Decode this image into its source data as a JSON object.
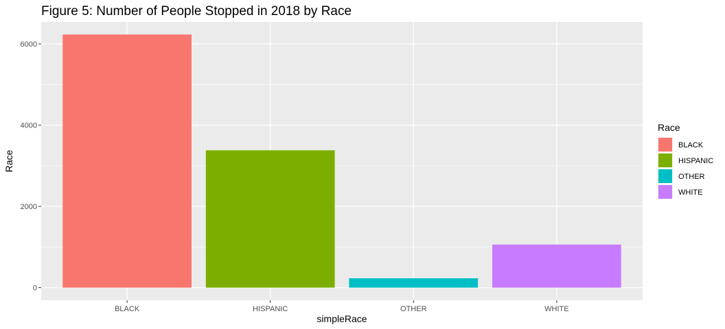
{
  "chart_data": {
    "type": "bar",
    "title": "Figure 5: Number of People Stopped in 2018 by Race",
    "xlabel": "simpleRace",
    "ylabel": "Race",
    "categories": [
      "BLACK",
      "HISPANIC",
      "OTHER",
      "WHITE"
    ],
    "values": [
      6230,
      3380,
      230,
      1060
    ],
    "colors": [
      "#F8766D",
      "#7CAE00",
      "#00BFC4",
      "#C77CFF"
    ],
    "ylim": [
      -310,
      6540
    ],
    "yticks": [
      0,
      2000,
      4000,
      6000
    ],
    "grid": true,
    "legend": {
      "title": "Race",
      "placement": "right",
      "entries": [
        "BLACK",
        "HISPANIC",
        "OTHER",
        "WHITE"
      ]
    }
  }
}
